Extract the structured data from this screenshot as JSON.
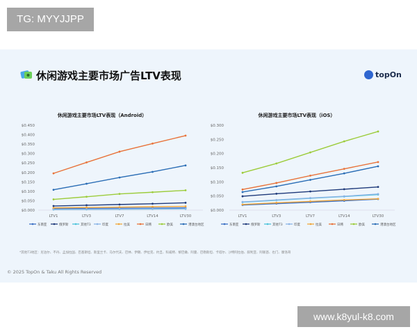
{
  "watermark_top": "TG: MYYJJPP",
  "watermark_bottom": "www.k8yul-k8.com",
  "header": {
    "title": "休闲游戏主要市场广告LTV表现",
    "logo_text": "topOn",
    "title_icon": "game-icon"
  },
  "footnote": "*其他T3地区：尼泊尔、不丹、孟加拉国、巴基斯坦、斯里兰卡、马尔代夫、巴林、伊朗、伊拉克、约旦、科威特、黎巴嫩、阿曼、巴勒斯坦、卡塔尔、沙特阿拉伯、叙利亚、阿联酋、也门、摩洛哥",
  "copyright": "© 2025 TopOn & Taku All Rights Reserved",
  "chart_data": [
    {
      "type": "line",
      "title": "休闲游戏主要市场LTV表现（Android）",
      "categories": [
        "LTV1",
        "LTV3",
        "LTV7",
        "LTV14",
        "LTV30"
      ],
      "ylim": [
        0,
        0.45
      ],
      "yticks": [
        "$0.000",
        "$0.050",
        "$0.100",
        "$0.150",
        "$0.200",
        "$0.250",
        "$0.300",
        "$0.350",
        "$0.400",
        "$0.450"
      ],
      "legend": "bottom",
      "series": [
        {
          "name": "东南亚",
          "color": "#3a6fc4",
          "values": [
            0.008,
            0.009,
            0.01,
            0.011,
            0.012
          ]
        },
        {
          "name": "俄罗斯",
          "color": "#1f3a7a",
          "values": [
            0.022,
            0.026,
            0.03,
            0.034,
            0.039
          ]
        },
        {
          "name": "其他T3",
          "color": "#4cc3d9",
          "values": [
            0.003,
            0.004,
            0.005,
            0.006,
            0.007
          ]
        },
        {
          "name": "印度",
          "color": "#8ab4e6",
          "values": [
            0.004,
            0.005,
            0.006,
            0.007,
            0.008
          ]
        },
        {
          "name": "拉美",
          "color": "#f0a63a",
          "values": [
            0.012,
            0.014,
            0.016,
            0.018,
            0.02
          ]
        },
        {
          "name": "日韩",
          "color": "#e8733a",
          "values": [
            0.195,
            0.253,
            0.31,
            0.353,
            0.395
          ]
        },
        {
          "name": "欧美",
          "color": "#9ccc3a",
          "values": [
            0.057,
            0.071,
            0.086,
            0.095,
            0.105
          ]
        },
        {
          "name": "港澳台地区",
          "color": "#2a6db5",
          "values": [
            0.108,
            0.14,
            0.173,
            0.203,
            0.237
          ]
        }
      ]
    },
    {
      "type": "line",
      "title": "休闲游戏主要市场LTV表现（iOS）",
      "categories": [
        "LTV1",
        "LTV3",
        "LTV7",
        "LTV14",
        "LTV30"
      ],
      "ylim": [
        0,
        0.3
      ],
      "yticks": [
        "$0.000",
        "$0.050",
        "$0.100",
        "$0.150",
        "$0.200",
        "$0.250",
        "$0.300"
      ],
      "legend": "bottom",
      "series": [
        {
          "name": "东南亚",
          "color": "#3a6fc4",
          "values": [
            0.018,
            0.023,
            0.028,
            0.033,
            0.039
          ]
        },
        {
          "name": "俄罗斯",
          "color": "#1f3a7a",
          "values": [
            0.049,
            0.058,
            0.066,
            0.074,
            0.082
          ]
        },
        {
          "name": "其他T3",
          "color": "#4cc3d9",
          "values": [
            0.028,
            0.035,
            0.042,
            0.048,
            0.055
          ]
        },
        {
          "name": "印度",
          "color": "#8ab4e6",
          "values": [
            0.029,
            0.036,
            0.043,
            0.049,
            0.057
          ]
        },
        {
          "name": "拉美",
          "color": "#f0a63a",
          "values": [
            0.02,
            0.026,
            0.031,
            0.036,
            0.04
          ]
        },
        {
          "name": "日韩",
          "color": "#e8733a",
          "values": [
            0.073,
            0.096,
            0.122,
            0.146,
            0.17
          ]
        },
        {
          "name": "欧美",
          "color": "#9ccc3a",
          "values": [
            0.132,
            0.165,
            0.204,
            0.243,
            0.278
          ]
        },
        {
          "name": "港澳台地区",
          "color": "#2a6db5",
          "values": [
            0.064,
            0.084,
            0.107,
            0.13,
            0.155
          ]
        }
      ]
    }
  ]
}
